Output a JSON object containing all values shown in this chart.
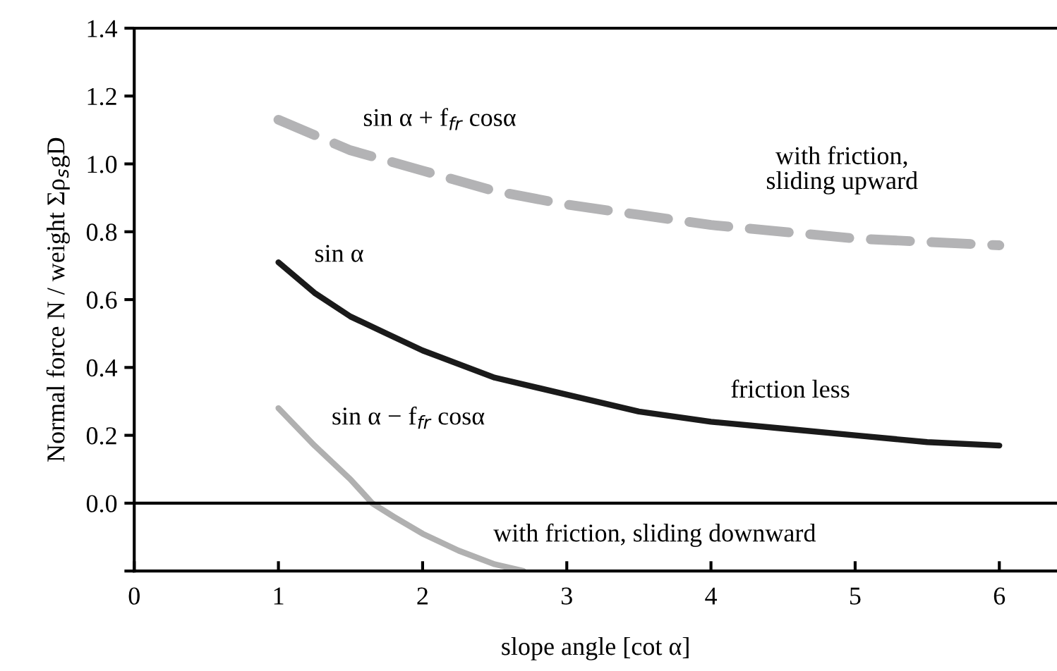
{
  "chart_data": {
    "type": "line",
    "xlabel": "slope angle [cot α]",
    "ylabel": "Normal force N / weight Σρ$_{s}$gD",
    "xlim": [
      0,
      6.4
    ],
    "xticks": [
      0,
      1,
      2,
      3,
      4,
      5,
      6
    ],
    "ylim": [
      -0.2,
      1.4
    ],
    "yticks": [
      {
        "value": -0.2,
        "label": null
      },
      {
        "value": 0,
        "label": "0.0"
      },
      {
        "value": 0.2,
        "label": "0.2"
      },
      {
        "value": 0.4,
        "label": "0.4"
      },
      {
        "value": 0.6,
        "label": "0.6"
      },
      {
        "value": 0.8,
        "label": "0.8"
      },
      {
        "value": 1.0,
        "label": "1.0"
      },
      {
        "value": 1.2,
        "label": "1.2"
      },
      {
        "value": 1.4,
        "label": "1.4"
      }
    ],
    "grid": false,
    "legend": false,
    "series": [
      {
        "color": "#b3b3b5",
        "line_style": "dashed",
        "x": [
          1,
          1.5,
          2,
          2.5,
          3,
          3.5,
          4,
          4.5,
          5,
          5.5,
          6
        ],
        "values": [
          1.13,
          1.04,
          0.98,
          0.92,
          0.88,
          0.85,
          0.82,
          0.8,
          0.78,
          0.77,
          0.76
        ]
      },
      {
        "color": "#1a1a1a",
        "line_style": "solid",
        "x": [
          1,
          1.25,
          1.5,
          1.75,
          2,
          2.5,
          3,
          3.5,
          4,
          4.5,
          5,
          5.5,
          6
        ],
        "values": [
          0.71,
          0.62,
          0.55,
          0.5,
          0.45,
          0.37,
          0.32,
          0.27,
          0.24,
          0.22,
          0.2,
          0.18,
          0.17
        ]
      },
      {
        "color": "#b0b0b0",
        "line_style": "solid",
        "x": [
          1,
          1.25,
          1.5,
          1.65,
          1.8,
          2,
          2.25,
          2.5,
          2.7
        ],
        "values": [
          0.28,
          0.17,
          0.07,
          0.0,
          -0.04,
          -0.09,
          -0.14,
          -0.18,
          -0.2
        ]
      }
    ],
    "ref_lines": [
      {
        "axis": "y",
        "value": 0,
        "color": "#000000"
      }
    ],
    "annotations": [
      "sin α + f$_{fr}$ cosα",
      "sin α",
      "sin α − f$_{fr}$ cosα",
      "with friction,\nsliding upward",
      "friction less",
      "with friction, sliding downward"
    ]
  }
}
